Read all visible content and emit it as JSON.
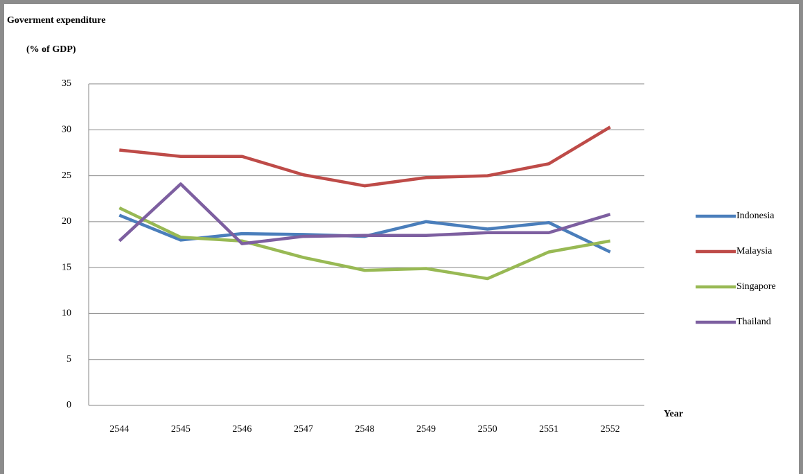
{
  "chart_data": {
    "type": "line",
    "ylabel": "Goverment expenditure",
    "ylabel_unit": "(% of GDP)",
    "xlabel": "Year",
    "categories": [
      "2544",
      "2545",
      "2546",
      "2547",
      "2548",
      "2549",
      "2550",
      "2551",
      "2552"
    ],
    "series": [
      {
        "name": "Indonesia",
        "color": "#4a7ebb",
        "values": [
          20.7,
          18.0,
          18.7,
          18.6,
          18.4,
          20.0,
          19.2,
          19.9,
          16.7
        ]
      },
      {
        "name": "Malaysia",
        "color": "#be4b48",
        "values": [
          27.8,
          27.1,
          27.1,
          25.1,
          23.9,
          24.8,
          25.0,
          26.3,
          30.3
        ]
      },
      {
        "name": "Singapore",
        "color": "#98b954",
        "values": [
          21.5,
          18.3,
          17.9,
          16.1,
          14.7,
          14.9,
          13.8,
          16.7,
          17.9
        ]
      },
      {
        "name": "Thailand",
        "color": "#7d5fa0",
        "values": [
          17.9,
          24.1,
          17.6,
          18.4,
          18.5,
          18.5,
          18.8,
          18.8,
          20.8
        ]
      }
    ],
    "ylim": [
      0,
      35
    ],
    "yticks": [
      0,
      5,
      10,
      15,
      20,
      25,
      30,
      35
    ],
    "grid": true,
    "legend": "right"
  }
}
